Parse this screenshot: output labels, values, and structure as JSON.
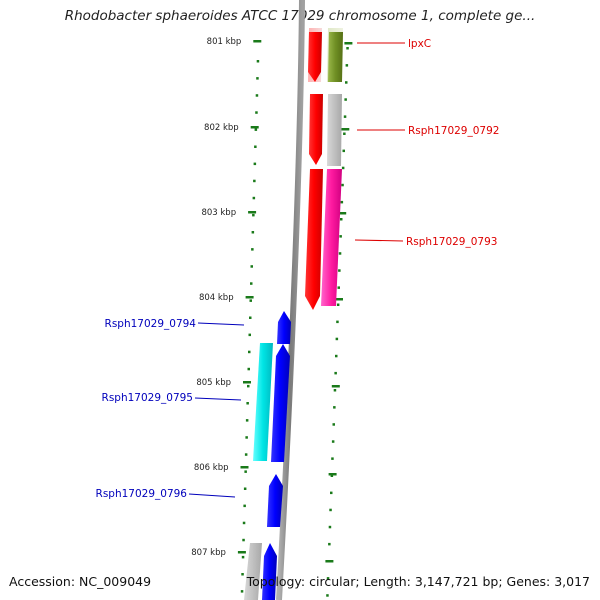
{
  "title": "Rhodobacter sphaeroides ATCC 17029 chromosome 1, complete ge...",
  "ticks": [
    "801 kbp",
    "802 kbp",
    "803 kbp",
    "804 kbp",
    "805 kbp",
    "806 kbp",
    "807 kbp"
  ],
  "genes": [
    {
      "label": "lpxC",
      "strand": "forward"
    },
    {
      "label": "Rsph17029_0792",
      "strand": "forward"
    },
    {
      "label": "Rsph17029_0793",
      "strand": "forward"
    },
    {
      "label": "Rsph17029_0794",
      "strand": "reverse"
    },
    {
      "label": "Rsph17029_0795",
      "strand": "reverse"
    },
    {
      "label": "Rsph17029_0796",
      "strand": "reverse"
    }
  ],
  "colors": {
    "forward_label": "#dd0000",
    "reverse_label": "#0000bb",
    "tick": "#1a7a1a",
    "backbone": "#888888"
  },
  "footer": {
    "accession": "Accession: NC_009049",
    "stats": "Topology: circular; Length: 3,147,721 bp; Genes: 3,017"
  }
}
